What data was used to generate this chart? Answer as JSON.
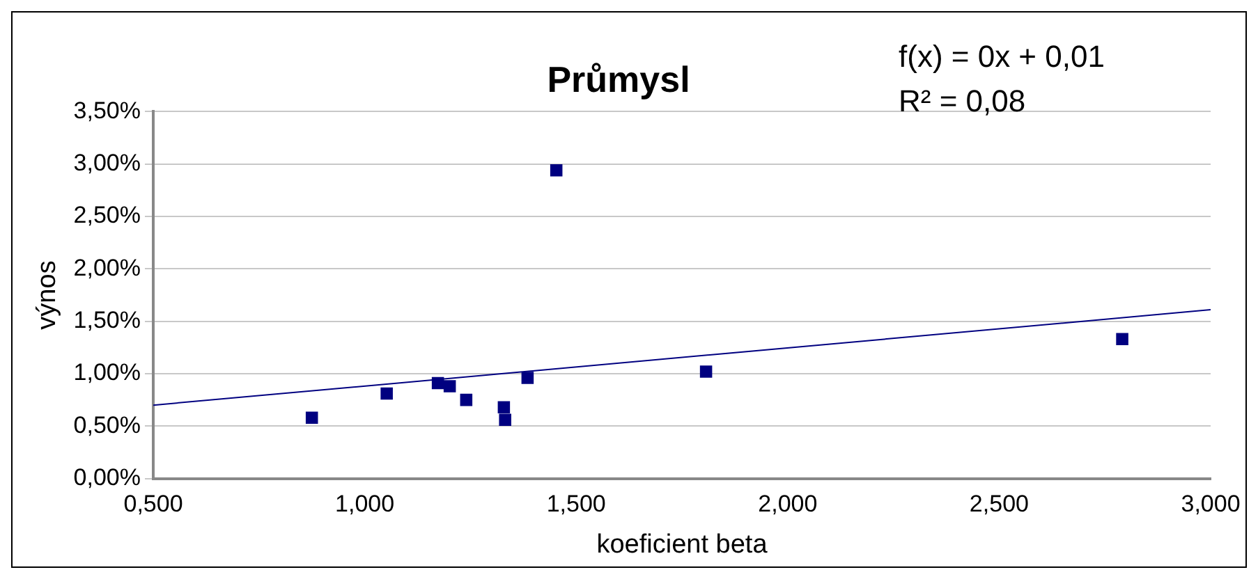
{
  "chart_data": {
    "type": "scatter",
    "title": "Průmysl",
    "xlabel": "koeficient beta",
    "ylabel": "výnos",
    "annotations": [
      "f(x) = 0x + 0,01",
      "R² = 0,08"
    ],
    "x": [
      0.875,
      1.052,
      1.173,
      1.201,
      1.24,
      1.329,
      1.332,
      1.385,
      1.453,
      1.807,
      2.791
    ],
    "series": [
      {
        "color": "#000080",
        "marker": "square",
        "values": [
          0.58,
          0.81,
          0.91,
          0.88,
          0.75,
          0.68,
          0.56,
          0.96,
          2.94,
          1.02,
          1.33
        ]
      },
      {
        "type": "line",
        "color": "#000080",
        "marker": "none",
        "x": [
          0.5,
          3.0
        ],
        "values": [
          0.7,
          1.61
        ]
      }
    ],
    "xlim": [
      0.5,
      3.0
    ],
    "xticks": [
      {
        "value": 0.5,
        "label": "0,500"
      },
      {
        "value": 1.0,
        "label": "1,000"
      },
      {
        "value": 1.5,
        "label": "1,500"
      },
      {
        "value": 2.0,
        "label": "2,000"
      },
      {
        "value": 2.5,
        "label": "2,500"
      },
      {
        "value": 3.0,
        "label": "3,000"
      }
    ],
    "ylim": [
      0,
      3.5
    ],
    "yticks": [
      {
        "value": 0,
        "label": "0,00%"
      },
      {
        "value": 0.5,
        "label": "0,50%"
      },
      {
        "value": 1.0,
        "label": "1,00%"
      },
      {
        "value": 1.5,
        "label": "1,50%"
      },
      {
        "value": 2.0,
        "label": "2,00%"
      },
      {
        "value": 2.5,
        "label": "2,50%"
      },
      {
        "value": 3.0,
        "label": "3,00%"
      },
      {
        "value": 3.5,
        "label": "3,50%"
      }
    ],
    "grid": "y",
    "legend": false
  }
}
